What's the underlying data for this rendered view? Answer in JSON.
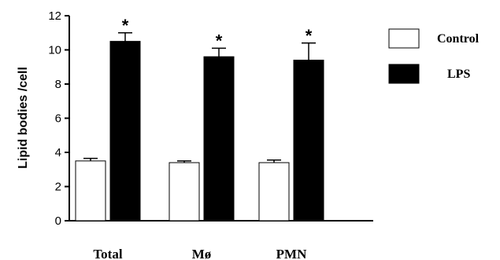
{
  "chart_data": {
    "type": "bar",
    "categories": [
      "Total",
      "Mø",
      "PMN"
    ],
    "series": [
      {
        "name": "Control",
        "values": [
          3.5,
          3.4,
          3.4
        ],
        "errors": [
          0.15,
          0.1,
          0.15
        ],
        "color": "#ffffff"
      },
      {
        "name": "LPS",
        "values": [
          10.5,
          9.6,
          9.4
        ],
        "errors": [
          0.5,
          0.5,
          1.0
        ],
        "color": "#000000"
      }
    ],
    "significance": [
      "*",
      "*",
      "*"
    ],
    "ylabel": "Lipid bodies /cell",
    "xlabel": "",
    "title": "",
    "ylim": [
      0,
      12
    ],
    "yticks": [
      0,
      2,
      4,
      6,
      8,
      10,
      12
    ],
    "grid": false,
    "legend_position": "right"
  }
}
